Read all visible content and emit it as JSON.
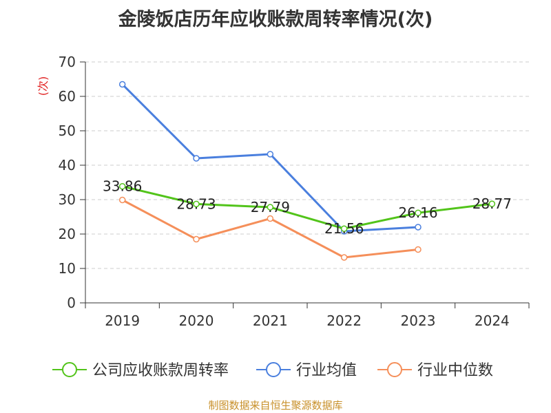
{
  "title": "金陵饭店历年应收账款周转率情况(次)",
  "source": "制图数据来自恒生聚源数据库",
  "chart_data": {
    "type": "line",
    "title": "金陵饭店历年应收账款周转率情况(次)",
    "ylabel": "(次)",
    "xlabel": "",
    "categories": [
      "2019",
      "2020",
      "2021",
      "2022",
      "2023",
      "2024"
    ],
    "ylim": [
      0,
      70
    ],
    "yticks": [
      0,
      10,
      20,
      30,
      40,
      50,
      60,
      70
    ],
    "grid": true,
    "legend_position": "bottom",
    "series": [
      {
        "name": "公司应收账款周转率",
        "color": "#52c41a",
        "values": [
          33.86,
          28.73,
          27.79,
          21.56,
          26.16,
          28.77
        ],
        "show_labels": true
      },
      {
        "name": "行业均值",
        "color": "#4a7fde",
        "values": [
          63.5,
          42.0,
          43.2,
          20.8,
          22.0,
          null
        ],
        "show_labels": false
      },
      {
        "name": "行业中位数",
        "color": "#f58f5a",
        "values": [
          29.9,
          18.5,
          24.5,
          13.2,
          15.5,
          null
        ],
        "show_labels": false
      }
    ]
  }
}
